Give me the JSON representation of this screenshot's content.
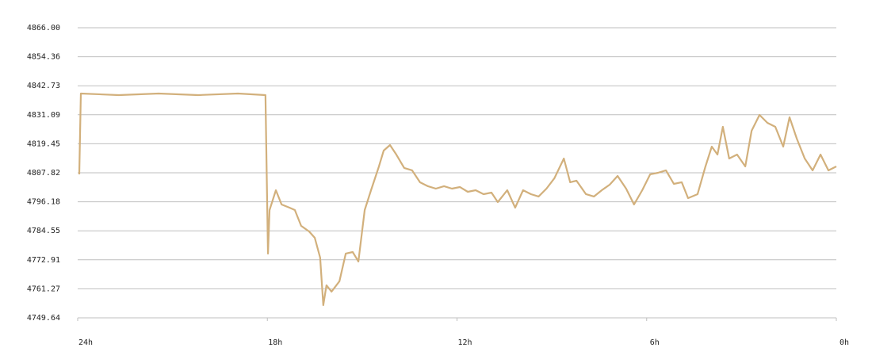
{
  "chart_data": {
    "type": "line",
    "color": "#d2b07c",
    "grid": true,
    "xlim": [
      24,
      0
    ],
    "ylim": [
      4749.64,
      4866
    ],
    "xticks": [
      {
        "value": 24,
        "label": "24h"
      },
      {
        "value": 18,
        "label": "18h"
      },
      {
        "value": 12,
        "label": "12h"
      },
      {
        "value": 6,
        "label": "6h"
      },
      {
        "value": 0,
        "label": "0h"
      }
    ],
    "yticks": [
      4749.64,
      4761.27,
      4772.91,
      4784.55,
      4796.18,
      4807.82,
      4819.45,
      4831.09,
      4842.73,
      4854.36,
      {
        "value": 4866,
        "label": "4866.00"
      }
    ],
    "x": [
      23.95,
      23.9,
      22.7,
      21.44,
      20.19,
      18.93,
      18.06,
      17.98,
      17.93,
      17.73,
      17.55,
      17.3,
      17.13,
      16.93,
      16.68,
      16.5,
      16.33,
      16.23,
      16.13,
      15.97,
      15.72,
      15.52,
      15.3,
      15.12,
      14.92,
      14.72,
      14.47,
      14.32,
      14.12,
      13.92,
      13.67,
      13.42,
      13.17,
      12.92,
      12.67,
      12.41,
      12.16,
      11.91,
      11.66,
      11.41,
      11.16,
      10.91,
      10.71,
      10.41,
      10.16,
      9.91,
      9.66,
      9.42,
      9.17,
      8.92,
      8.62,
      8.42,
      8.22,
      7.92,
      7.67,
      7.42,
      7.17,
      6.92,
      6.65,
      6.4,
      6.14,
      5.89,
      5.64,
      5.39,
      5.14,
      4.89,
      4.69,
      4.39,
      4.14,
      3.94,
      3.76,
      3.59,
      3.39,
      3.14,
      2.88,
      2.68,
      2.43,
      2.18,
      1.93,
      1.68,
      1.48,
      1.25,
      1.0,
      0.75,
      0.5,
      0.25,
      0.0
    ],
    "values": [
      4807.19,
      4839.61,
      4838.98,
      4839.61,
      4838.98,
      4839.61,
      4838.98,
      4775.4,
      4792.88,
      4800.83,
      4795.11,
      4793.83,
      4792.88,
      4786.52,
      4784.3,
      4781.75,
      4773.81,
      4754.73,
      4762.68,
      4760.14,
      4764.27,
      4775.4,
      4776.03,
      4772.22,
      4792.88,
      4800.83,
      4810.37,
      4816.72,
      4818.95,
      4815.13,
      4809.73,
      4808.78,
      4804.01,
      4802.42,
      4801.46,
      4802.42,
      4801.46,
      4802.1,
      4800.19,
      4800.83,
      4799.24,
      4799.87,
      4796.06,
      4800.83,
      4793.83,
      4800.83,
      4799.24,
      4798.29,
      4801.46,
      4805.6,
      4813.54,
      4804.01,
      4804.64,
      4799.24,
      4798.29,
      4800.83,
      4803.05,
      4806.55,
      4801.46,
      4795.11,
      4800.83,
      4807.19,
      4807.82,
      4808.78,
      4803.37,
      4804.01,
      4797.65,
      4799.24,
      4810.37,
      4818.31,
      4815.13,
      4826.26,
      4813.54,
      4815.13,
      4810.37,
      4824.67,
      4831.03,
      4827.85,
      4826.26,
      4818.31,
      4830.08,
      4821.49,
      4813.54,
      4808.78,
      4815.13,
      4808.78,
      4810.37
    ]
  }
}
